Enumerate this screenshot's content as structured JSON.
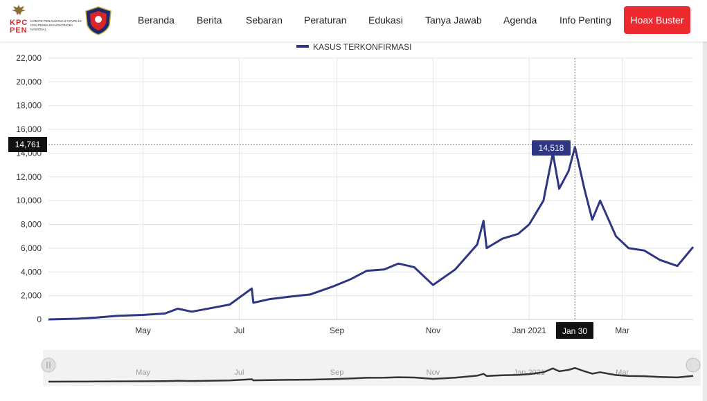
{
  "header": {
    "logo_text": "KPC PEN",
    "logo_subtitle": "KOMITE PENANGANAN COVID-19 DAN PEMULIHAN EKONOMI NASIONAL",
    "nav_items": [
      "Beranda",
      "Berita",
      "Sebaran",
      "Peraturan",
      "Edukasi",
      "Tanya Jawab",
      "Agenda",
      "Info Penting"
    ],
    "hoax_label": "Hoax Buster",
    "hoax_color": "#ee2a30"
  },
  "chart_data": {
    "type": "line",
    "title": "",
    "xlabel": "",
    "ylabel": "",
    "series": [
      {
        "name": "KASUS TERKONFIRMASI",
        "color": "#2e3582",
        "points": [
          [
            "2020-03-02",
            2
          ],
          [
            "2020-03-20",
            60
          ],
          [
            "2020-04-01",
            150
          ],
          [
            "2020-04-15",
            300
          ],
          [
            "2020-05-01",
            380
          ],
          [
            "2020-05-15",
            500
          ],
          [
            "2020-05-23",
            900
          ],
          [
            "2020-06-01",
            650
          ],
          [
            "2020-06-15",
            1000
          ],
          [
            "2020-06-25",
            1250
          ],
          [
            "2020-07-09",
            2600
          ],
          [
            "2020-07-10",
            1400
          ],
          [
            "2020-07-20",
            1700
          ],
          [
            "2020-08-01",
            1900
          ],
          [
            "2020-08-15",
            2100
          ],
          [
            "2020-08-30",
            2800
          ],
          [
            "2020-09-10",
            3400
          ],
          [
            "2020-09-20",
            4100
          ],
          [
            "2020-10-01",
            4200
          ],
          [
            "2020-10-10",
            4700
          ],
          [
            "2020-10-20",
            4400
          ],
          [
            "2020-11-01",
            2900
          ],
          [
            "2020-11-15",
            4200
          ],
          [
            "2020-11-29",
            6300
          ],
          [
            "2020-12-03",
            8300
          ],
          [
            "2020-12-05",
            6000
          ],
          [
            "2020-12-15",
            6800
          ],
          [
            "2020-12-25",
            7200
          ],
          [
            "2021-01-01",
            8000
          ],
          [
            "2021-01-10",
            10000
          ],
          [
            "2021-01-16",
            14000
          ],
          [
            "2021-01-20",
            11000
          ],
          [
            "2021-01-26",
            12500
          ],
          [
            "2021-01-30",
            14518
          ],
          [
            "2021-02-05",
            11000
          ],
          [
            "2021-02-10",
            8400
          ],
          [
            "2021-02-15",
            10000
          ],
          [
            "2021-02-25",
            7000
          ],
          [
            "2021-03-05",
            6000
          ],
          [
            "2021-03-15",
            5800
          ],
          [
            "2021-03-25",
            5000
          ],
          [
            "2021-04-05",
            4500
          ],
          [
            "2021-04-15",
            6100
          ]
        ]
      }
    ],
    "y_ticks": [
      "0",
      "2,000",
      "4,000",
      "6,000",
      "8,000",
      "10,000",
      "12,000",
      "14,000",
      "16,000",
      "18,000",
      "20,000",
      "22,000"
    ],
    "ylim": [
      0,
      22000
    ],
    "x_ticks": [
      "May",
      "Jul",
      "Sep",
      "Nov",
      "Jan 2021",
      "Mar"
    ],
    "tooltip": {
      "date": "Jan 30",
      "value": "14,518"
    },
    "crosshair_y_label": "14,761",
    "grid": true,
    "legend": "top-center"
  }
}
